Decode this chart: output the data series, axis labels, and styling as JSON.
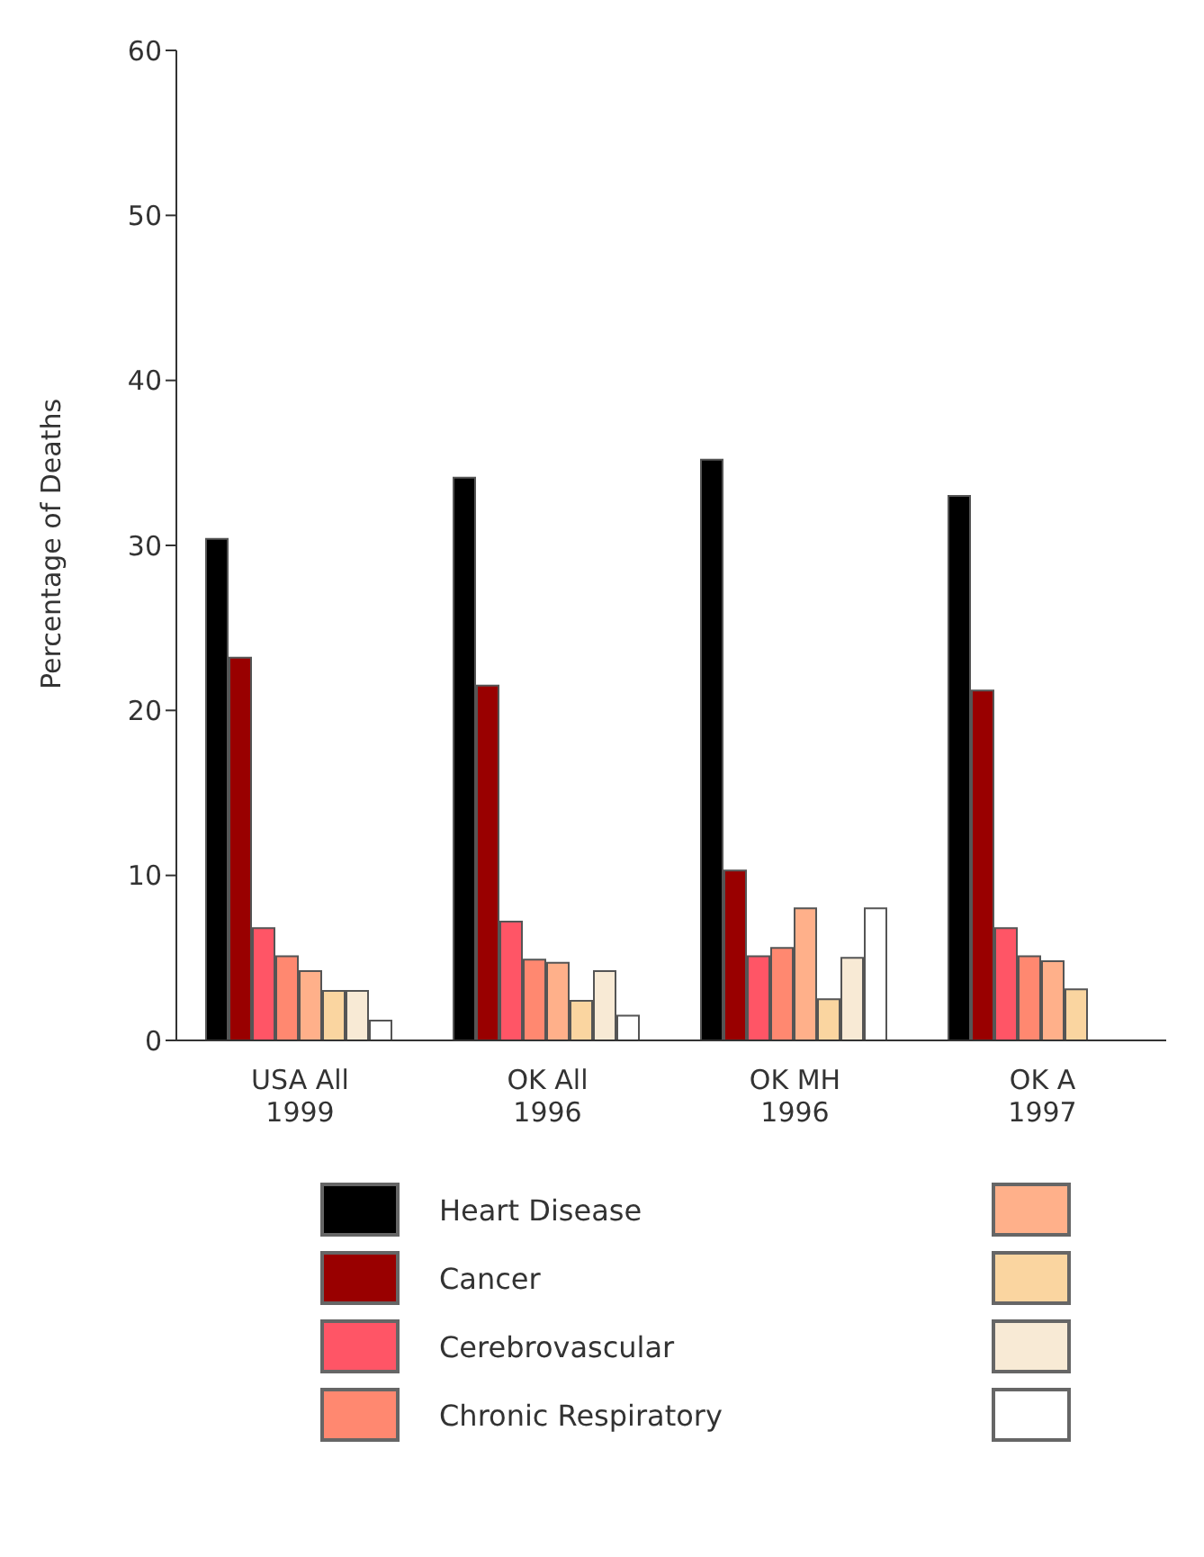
{
  "chart_data": {
    "type": "bar",
    "ylabel": "Percentage of Deaths",
    "categories": [
      "USA All\n1999",
      "OK All\n1996",
      "OK MH\n1996",
      "OK A\n1997"
    ],
    "series": [
      {
        "name": "Heart Disease",
        "color": "#000000",
        "values": [
          30.4,
          34.1,
          35.2,
          33.0
        ]
      },
      {
        "name": "Cancer",
        "color": "#990000",
        "values": [
          23.2,
          21.5,
          10.3,
          21.2
        ]
      },
      {
        "name": "Cerebrovascular",
        "color": "#ff5566",
        "values": [
          6.8,
          7.2,
          5.1,
          6.8
        ]
      },
      {
        "name": "Chronic Respiratory",
        "color": "#ff8870",
        "values": [
          5.1,
          4.9,
          5.6,
          5.1
        ]
      },
      {
        "color": "#ffb08a",
        "values": [
          4.2,
          4.7,
          8.0,
          4.8
        ]
      },
      {
        "color": "#fad5a0",
        "values": [
          3.0,
          2.4,
          2.5,
          3.1
        ]
      },
      {
        "color": "#f8ead5",
        "values": [
          3.0,
          4.2,
          5.0,
          null
        ]
      },
      {
        "color": "#ffffff",
        "values": [
          1.2,
          1.5,
          8.0,
          null
        ]
      }
    ],
    "ylim": [
      0,
      60
    ],
    "yticks": [
      0,
      10,
      20,
      30,
      40,
      50,
      60
    ],
    "grid": false,
    "legend": "bottom"
  }
}
